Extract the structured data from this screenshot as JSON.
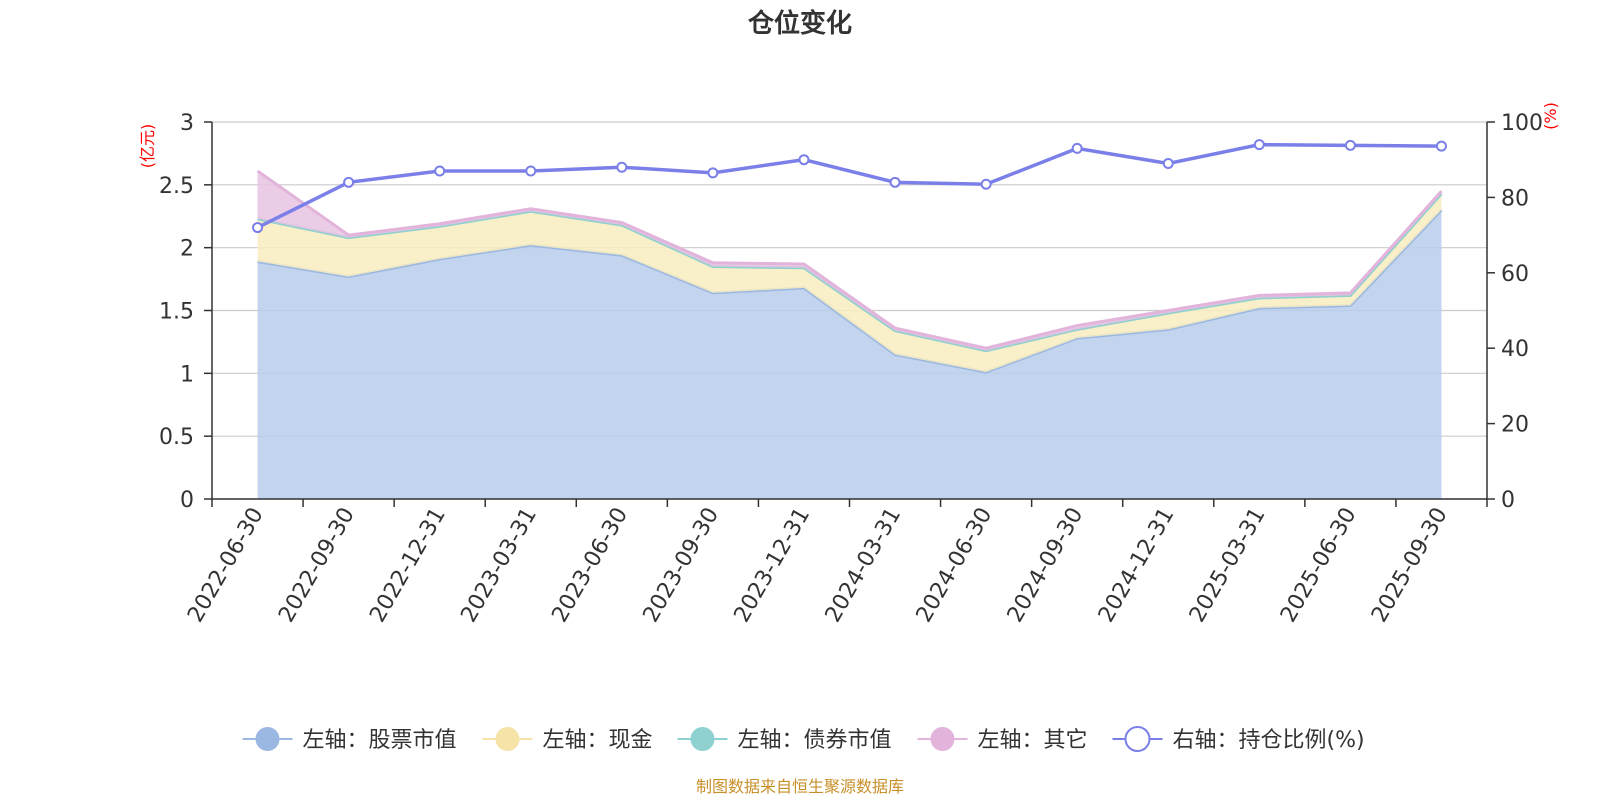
{
  "chart_data": {
    "type": "area",
    "title": "仓位变化",
    "left_unit": "(亿元)",
    "right_unit": "(%)",
    "categories": [
      "2022-06-30",
      "2022-09-30",
      "2022-12-31",
      "2023-03-31",
      "2023-06-30",
      "2023-09-30",
      "2023-12-31",
      "2024-03-31",
      "2024-06-30",
      "2024-09-30",
      "2024-12-31",
      "2025-03-31",
      "2025-06-30",
      "2025-09-30"
    ],
    "left_axis": {
      "min": 0,
      "max": 3,
      "ticks": [
        "0",
        "0.5",
        "1",
        "1.5",
        "2",
        "2.5",
        "3"
      ]
    },
    "right_axis": {
      "min": 0,
      "max": 100,
      "ticks": [
        "0",
        "20",
        "40",
        "60",
        "80",
        "100"
      ]
    },
    "series": [
      {
        "name": "左轴：股票市值",
        "axis": "left",
        "stack": true,
        "color": "#9bb8e2",
        "fill": "#b8cceb",
        "values": [
          1.89,
          1.77,
          1.91,
          2.02,
          1.94,
          1.64,
          1.68,
          1.15,
          1.01,
          1.28,
          1.35,
          1.52,
          1.54,
          2.3
        ]
      },
      {
        "name": "左轴：现金",
        "axis": "left",
        "stack": true,
        "color": "#f5e3a8",
        "fill": "#f8ecc0",
        "values": [
          0.34,
          0.31,
          0.26,
          0.27,
          0.24,
          0.21,
          0.16,
          0.19,
          0.17,
          0.07,
          0.13,
          0.08,
          0.08,
          0.13
        ]
      },
      {
        "name": "左轴：债券市值",
        "axis": "left",
        "stack": true,
        "color": "#8fd0d0",
        "fill": "#a8dcdc",
        "values": [
          0,
          0,
          0,
          0,
          0,
          0,
          0,
          0,
          0,
          0,
          0,
          0,
          0,
          0
        ]
      },
      {
        "name": "左轴：其它",
        "axis": "left",
        "stack": true,
        "color": "#e2b4dc",
        "fill": "#e8c3e3",
        "values": [
          0.38,
          0.02,
          0.02,
          0.02,
          0.02,
          0.03,
          0.03,
          0.02,
          0.02,
          0.03,
          0.02,
          0.02,
          0.02,
          0.02
        ]
      },
      {
        "name": "右轴：持仓比例(%)",
        "axis": "right",
        "stack": false,
        "color": "#7b7fe8",
        "fill": "none",
        "values": [
          72.0,
          84.0,
          87.0,
          87.0,
          88.0,
          86.5,
          90.0,
          84.0,
          83.5,
          93.0,
          89.0,
          94.0,
          93.8,
          93.6
        ]
      }
    ],
    "legend_position": "bottom-center",
    "grid": true
  },
  "footer": {
    "source": "制图数据来自恒生聚源数据库"
  }
}
